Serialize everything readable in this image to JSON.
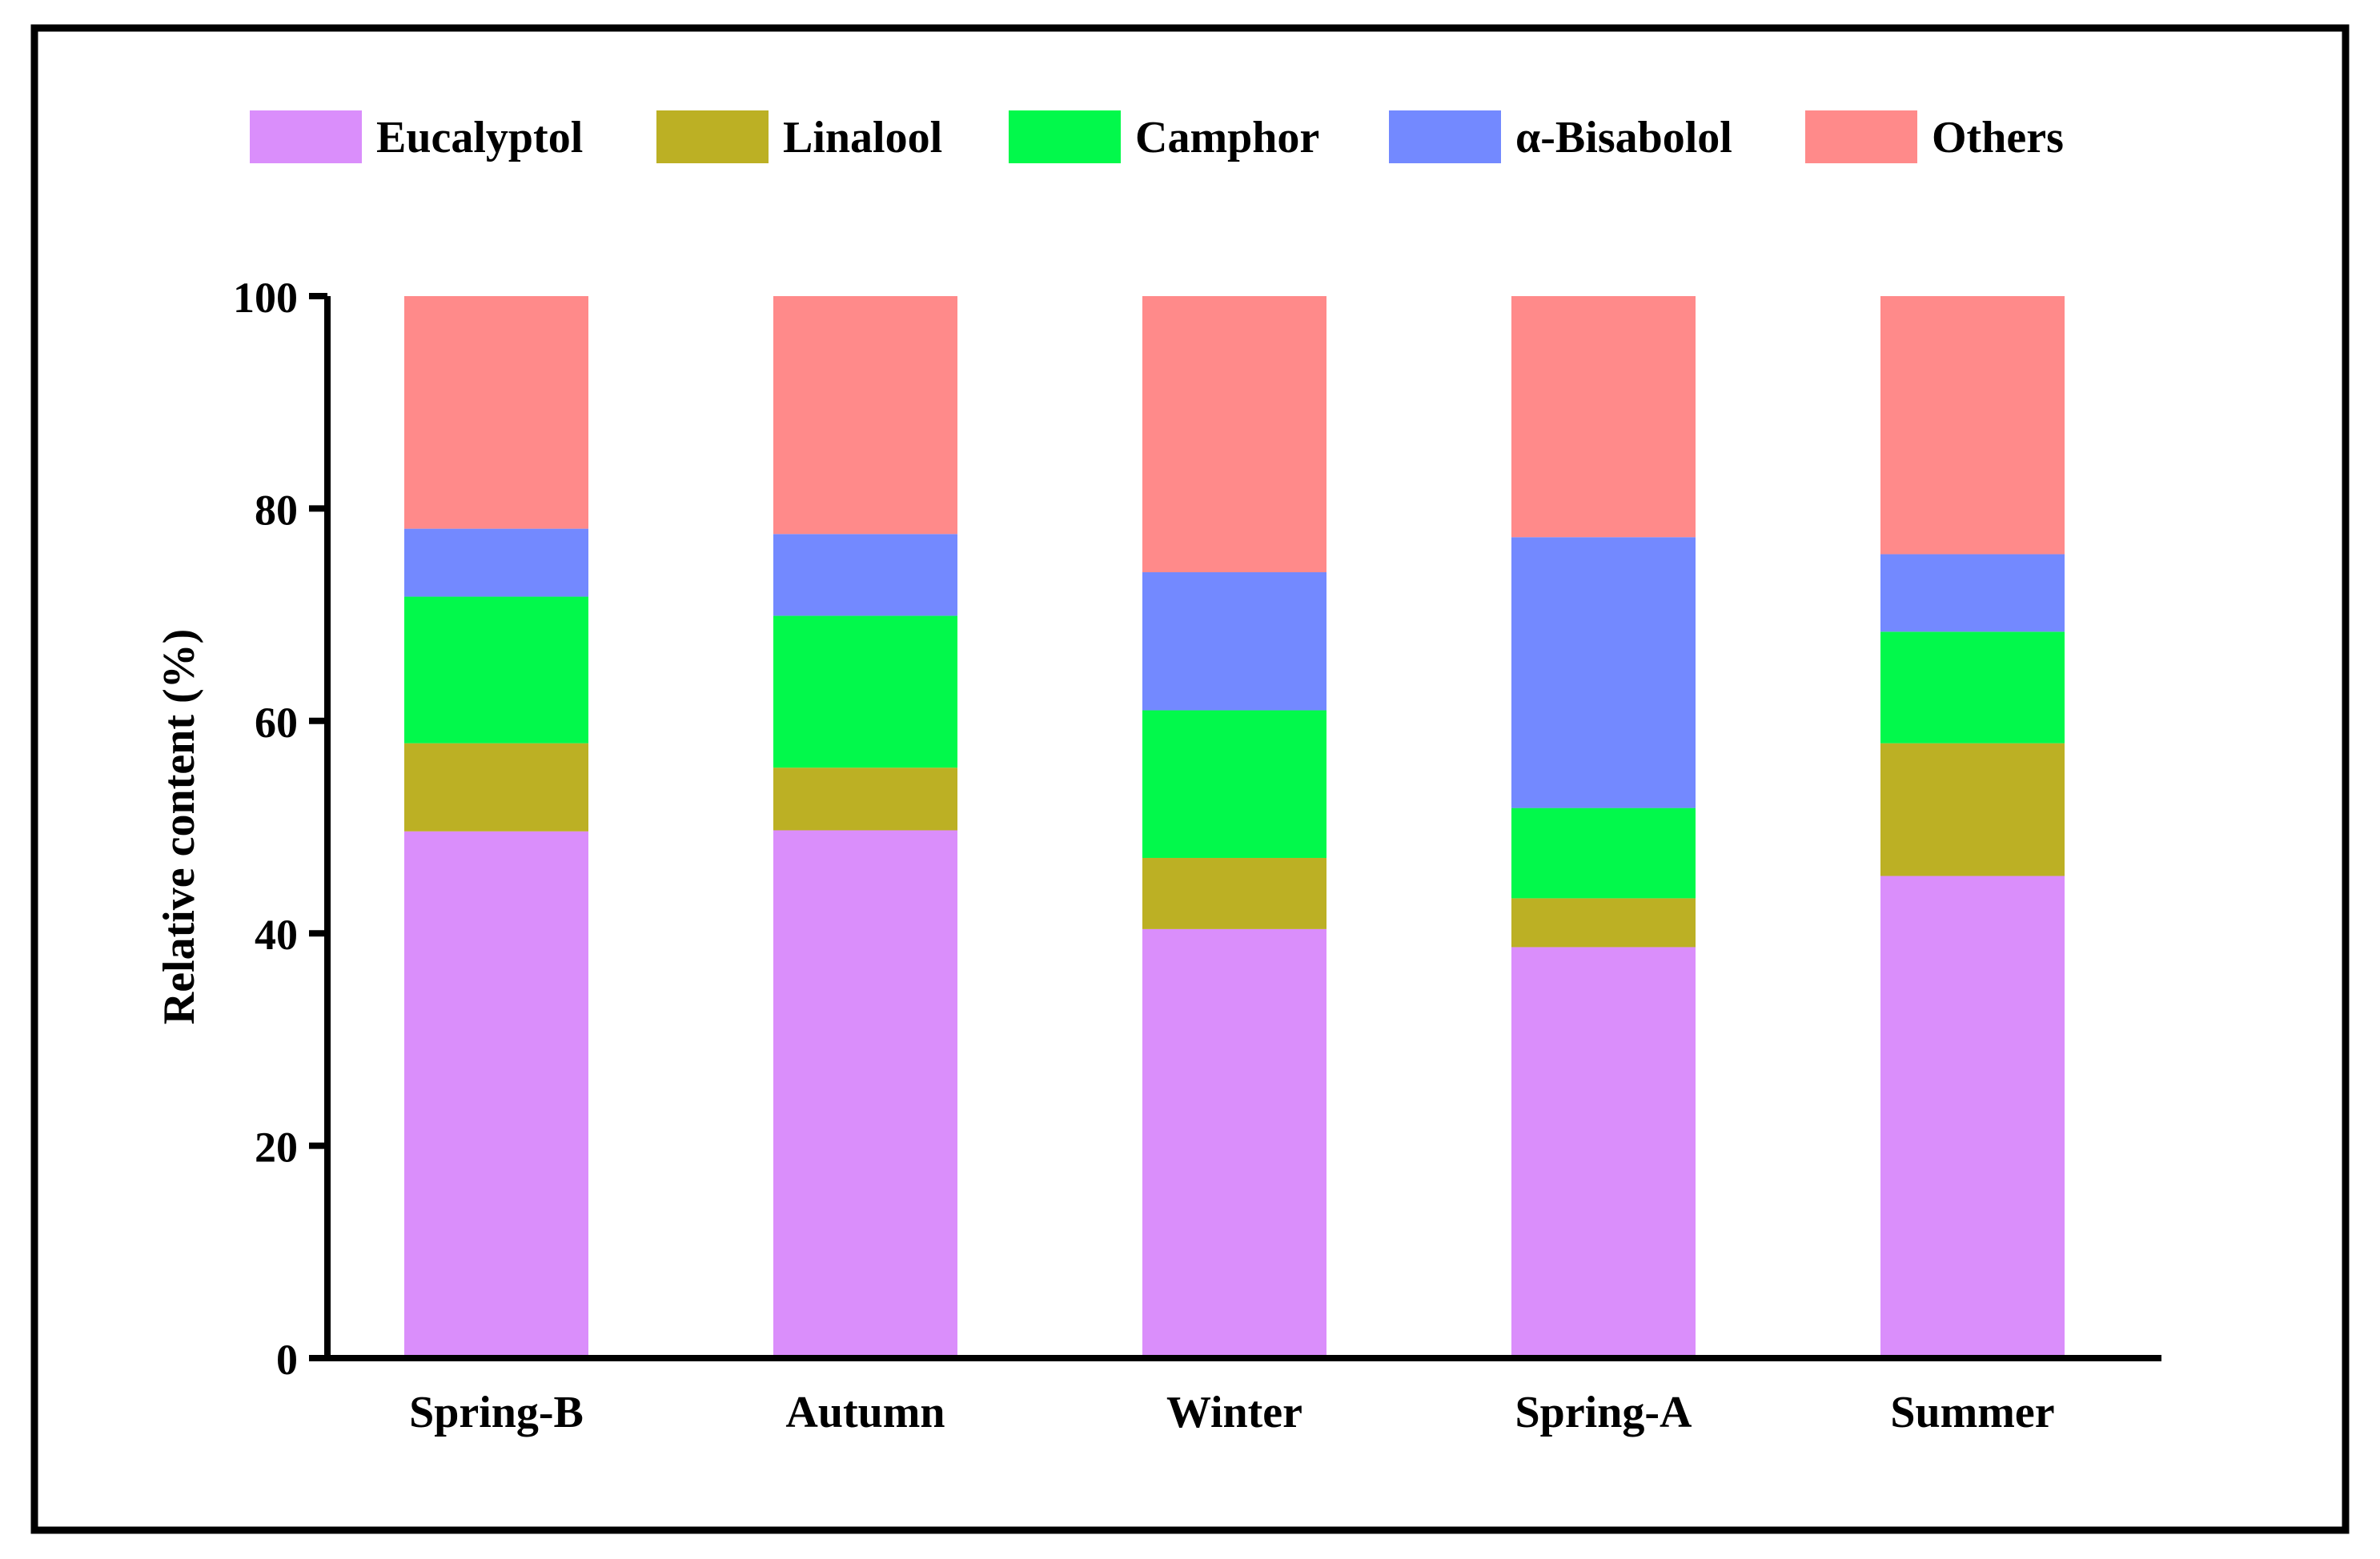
{
  "chart_data": {
    "type": "bar",
    "stacked": true,
    "title": "",
    "xlabel": "",
    "ylabel": "Relative content (%)",
    "ylim": [
      0,
      100
    ],
    "yticks": [
      0,
      20,
      40,
      60,
      80,
      100
    ],
    "grid": false,
    "legend_position": "top",
    "categories": [
      "Spring-B",
      "Autumn",
      "Winter",
      "Spring-A",
      "Summer"
    ],
    "series": [
      {
        "name": "Eucalyptol",
        "color": "#da8efb",
        "values": [
          49.6,
          49.7,
          40.4,
          38.7,
          45.4
        ]
      },
      {
        "name": "Linalool",
        "color": "#bcb024",
        "values": [
          8.3,
          5.9,
          6.7,
          4.6,
          12.5
        ]
      },
      {
        "name": "Camphor",
        "color": "#02f94b",
        "values": [
          13.8,
          14.3,
          13.9,
          8.5,
          10.5
        ]
      },
      {
        "name": "α-Bisabolol",
        "color": "#7389ff",
        "values": [
          6.4,
          7.7,
          13.0,
          25.5,
          7.3
        ]
      },
      {
        "name": "Others",
        "color": "#ff8a8a",
        "values": [
          21.9,
          22.4,
          26.0,
          22.7,
          24.3
        ]
      }
    ]
  }
}
